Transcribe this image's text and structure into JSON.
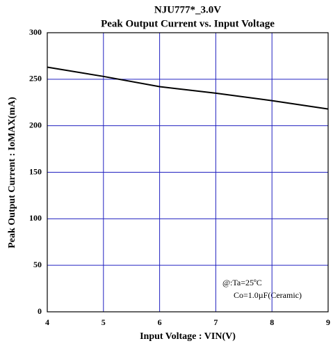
{
  "chart_data": {
    "type": "line",
    "title": "NJU777*_3.0V",
    "subtitle": "Peak Output Current vs. Input Voltage",
    "x_label": "Input Voltage : VIN(V)",
    "y_label": "Peak Output Current : IoMAX(mA)",
    "annotations": [
      "@:Ta=25ºC",
      "Co=1.0µF(Ceramic)"
    ],
    "x": [
      4,
      5,
      6,
      7,
      8,
      9
    ],
    "series": [
      {
        "name": "",
        "color": "#000000",
        "values": [
          263,
          253,
          242,
          235,
          227,
          218
        ]
      }
    ],
    "xlim": [
      4,
      9
    ],
    "xticks": [
      4,
      5,
      6,
      7,
      8,
      9
    ],
    "ylim": [
      0,
      300
    ],
    "yticks": [
      0,
      50,
      100,
      150,
      200,
      250,
      300
    ],
    "grid": true,
    "grid_color": "#2020c0"
  }
}
